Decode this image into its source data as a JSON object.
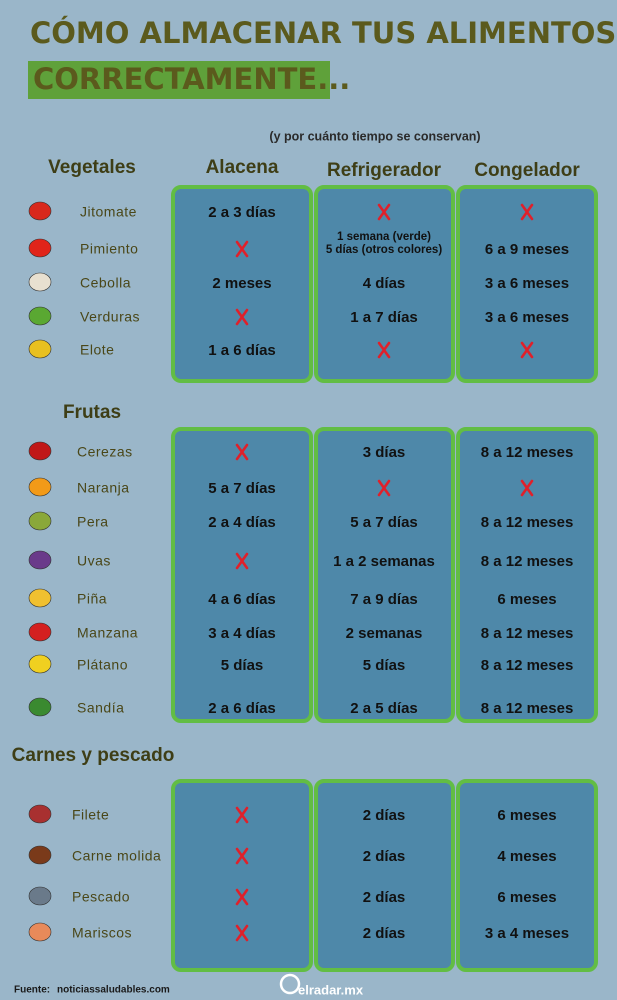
{
  "header": {
    "title": "CÓMO ALMACENAR TUS ALIMENTOS",
    "title_highlight": "CORRECTAMENTE...",
    "subtitle": "(y por cuánto tiempo se conservan)"
  },
  "columns": [
    "Alacena",
    "Refrigerador",
    "Congelador"
  ],
  "sections": [
    {
      "name": "Vegetales",
      "rows": [
        {
          "item": "Jitomate",
          "cells": [
            "2 a 3 días",
            null,
            null
          ]
        },
        {
          "item": "Pimiento",
          "cells": [
            null,
            [
              "1 semana (verde)",
              "5 días (otros colores)"
            ],
            "6 a 9 meses"
          ]
        },
        {
          "item": "Cebolla",
          "cells": [
            "2 meses",
            "4 días",
            "3 a 6 meses"
          ]
        },
        {
          "item": "Verduras",
          "cells": [
            null,
            "1 a 7 días",
            "3 a 6 meses"
          ]
        },
        {
          "item": "Elote",
          "cells": [
            "1 a 6 días",
            null,
            null
          ]
        }
      ]
    },
    {
      "name": "Frutas",
      "rows": [
        {
          "item": "Cerezas",
          "cells": [
            null,
            "3 días",
            "8 a 12 meses"
          ]
        },
        {
          "item": "Naranja",
          "cells": [
            "5 a 7 días",
            null,
            null
          ]
        },
        {
          "item": "Pera",
          "cells": [
            "2 a 4 días",
            "5 a 7 días",
            "8 a 12 meses"
          ]
        },
        {
          "item": "Uvas",
          "cells": [
            null,
            "1 a 2 semanas",
            "8 a 12 meses"
          ]
        },
        {
          "item": "Piña",
          "cells": [
            "4 a 6 días",
            "7 a 9 días",
            "6 meses"
          ]
        },
        {
          "item": "Manzana",
          "cells": [
            "3 a 4  días",
            "2 semanas",
            "8 a 12 meses"
          ]
        },
        {
          "item": "Plátano",
          "cells": [
            "5 días",
            "5 días",
            "8 a 12 meses"
          ]
        },
        {
          "item": "Sandía",
          "cells": [
            "2 a 6 días",
            "2 a 5 días",
            "8 a 12 meses"
          ]
        }
      ]
    },
    {
      "name": "Carnes y pescado",
      "rows": [
        {
          "item": "Filete",
          "cells": [
            null,
            "2 días",
            "6 meses"
          ]
        },
        {
          "item": "Carne molida",
          "cells": [
            null,
            "2 días",
            "4 meses"
          ]
        },
        {
          "item": "Pescado",
          "cells": [
            null,
            "2 días",
            "6 meses"
          ]
        },
        {
          "item": "Mariscos",
          "cells": [
            null,
            "2 días",
            "3 a 4 meses"
          ]
        }
      ]
    }
  ],
  "footer": {
    "source_label": "Fuente:",
    "source": "noticiassaludables.com",
    "brand": "elradar.mx"
  }
}
